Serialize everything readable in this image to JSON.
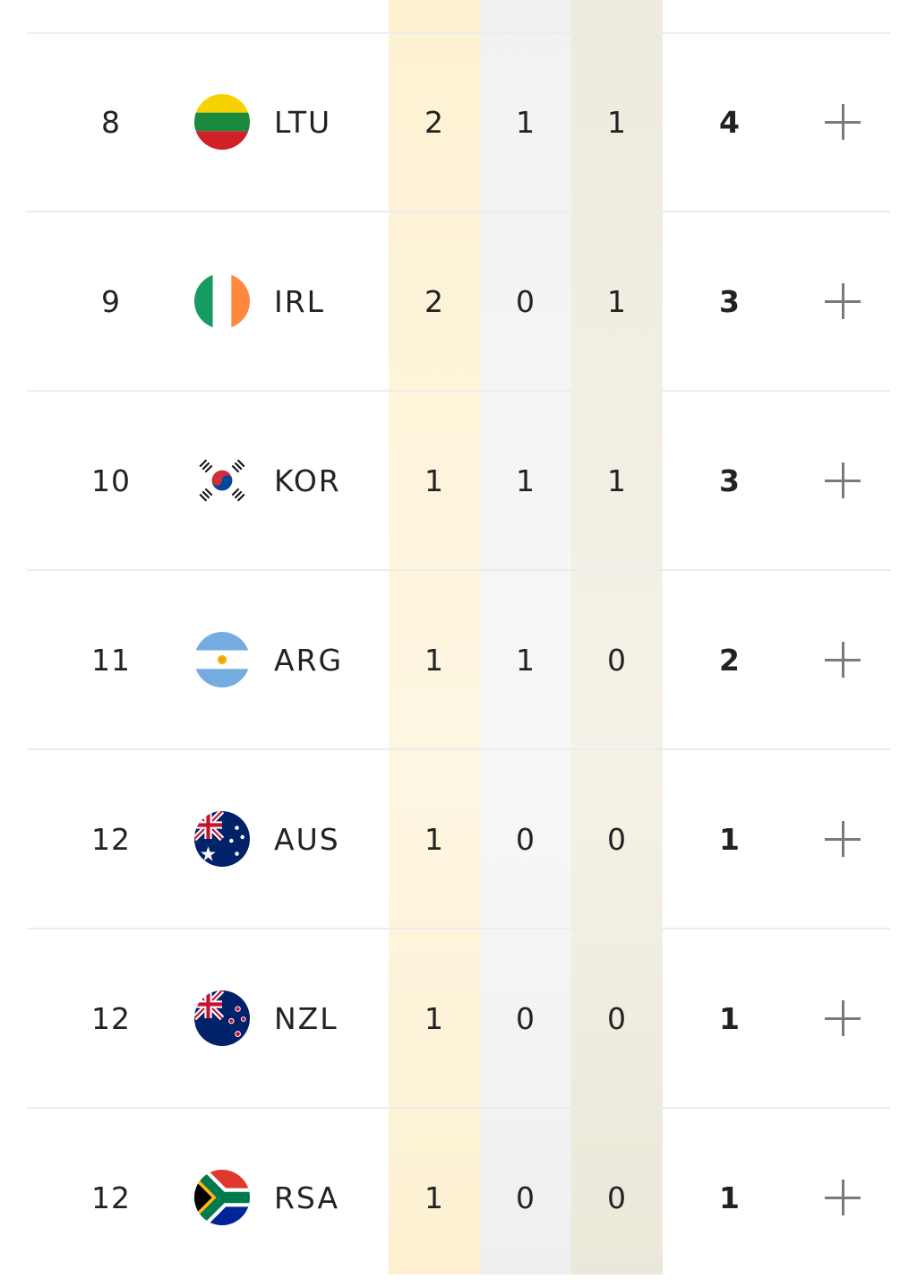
{
  "columns": {
    "gold_color": "#fdf3d6",
    "silver_color": "#f3f3f3",
    "bronze_color": "#f0ede1"
  },
  "rows": [
    {
      "rank": "8",
      "flag_icon": "flag-lithuania-icon",
      "code": "LTU",
      "gold": "2",
      "silver": "1",
      "bronze": "1",
      "total": "4"
    },
    {
      "rank": "9",
      "flag_icon": "flag-ireland-icon",
      "code": "IRL",
      "gold": "2",
      "silver": "0",
      "bronze": "1",
      "total": "3"
    },
    {
      "rank": "10",
      "flag_icon": "flag-south-korea-icon",
      "code": "KOR",
      "gold": "1",
      "silver": "1",
      "bronze": "1",
      "total": "3"
    },
    {
      "rank": "11",
      "flag_icon": "flag-argentina-icon",
      "code": "ARG",
      "gold": "1",
      "silver": "1",
      "bronze": "0",
      "total": "2"
    },
    {
      "rank": "12",
      "flag_icon": "flag-australia-icon",
      "code": "AUS",
      "gold": "1",
      "silver": "0",
      "bronze": "0",
      "total": "1"
    },
    {
      "rank": "12",
      "flag_icon": "flag-new-zealand-icon",
      "code": "NZL",
      "gold": "1",
      "silver": "0",
      "bronze": "0",
      "total": "1"
    },
    {
      "rank": "12",
      "flag_icon": "flag-south-africa-icon",
      "code": "RSA",
      "gold": "1",
      "silver": "0",
      "bronze": "0",
      "total": "1"
    }
  ],
  "expand_icon": "plus-icon"
}
